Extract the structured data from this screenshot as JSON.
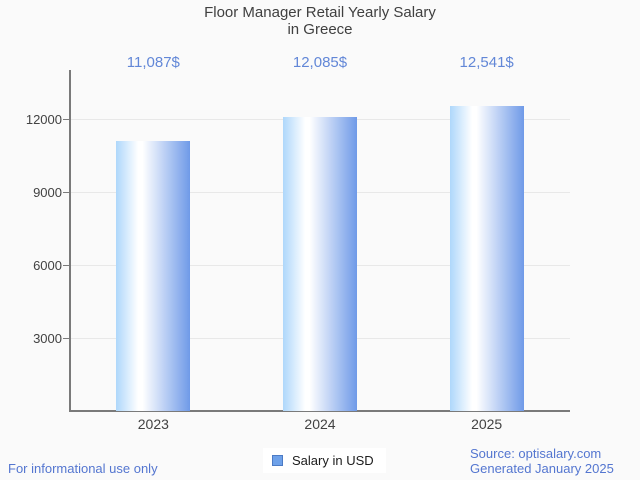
{
  "title": {
    "line1": "Floor Manager Retail Yearly Salary",
    "line2": "in Greece"
  },
  "chart_data": {
    "type": "bar",
    "title": "Floor Manager Retail Yearly Salary in Greece",
    "categories": [
      "2023",
      "2024",
      "2025"
    ],
    "series": [
      {
        "name": "Salary in USD",
        "values": [
          11087,
          12085,
          12541
        ]
      }
    ],
    "value_labels": [
      "11,087$",
      "12,085$",
      "12,541$"
    ],
    "xlabel": "",
    "ylabel": "",
    "ylim": [
      0,
      14000
    ],
    "yticks": [
      3000,
      6000,
      9000,
      12000
    ],
    "ytick_labels": [
      "3000",
      "6000",
      "9000",
      "12000"
    ],
    "grid": "horizontal",
    "legend_position": "bottom"
  },
  "footer": {
    "left": "For informational use only",
    "source": "Source: optisalary.com",
    "generated": "Generated January 2025"
  },
  "colors": {
    "background": "#fafafa",
    "title_text": "#404040",
    "axis_text": "#424242",
    "value_text": "#6287d7",
    "footer_text": "#5476d0",
    "axis_line": "#7a7a7a",
    "gridline": "#e8e8e8",
    "bar_gradient_left": "#aed7fb",
    "bar_gradient_mid": "#ffffff",
    "bar_gradient_right": "#6f9ae8",
    "legend_swatch_fill": "#6ea1e9",
    "legend_swatch_border": "#4c7bc5"
  }
}
